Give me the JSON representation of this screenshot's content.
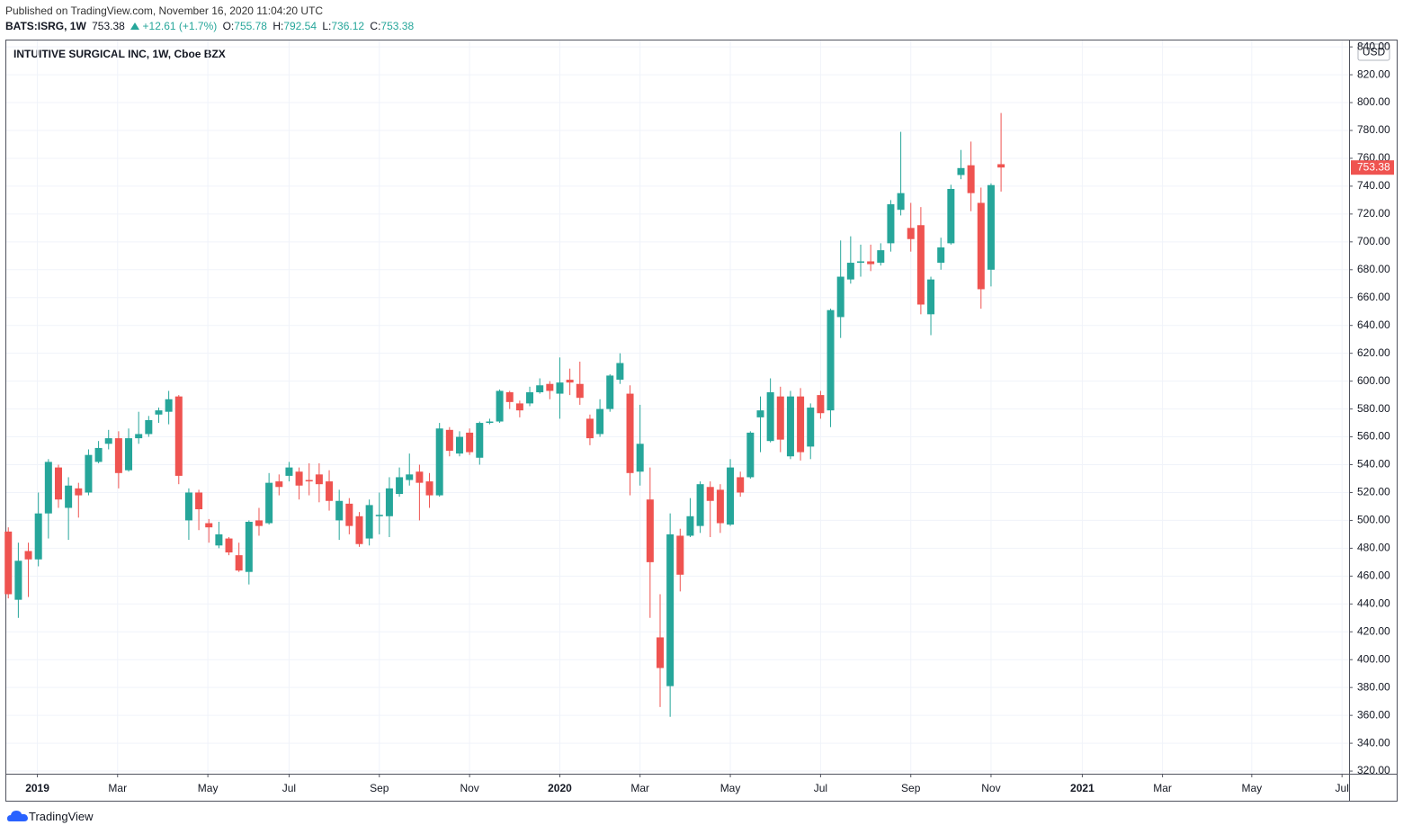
{
  "header": {
    "published": "Published on TradingView.com, November 16, 2020 11:04:20 UTC",
    "symbol": "BATS:ISRG, 1W",
    "change": "+12.61 (+1.7%)",
    "o_label": "O:",
    "h_label": "H:",
    "l_label": "L:",
    "c_label": "C:"
  },
  "chart_data": {
    "type": "candlestick",
    "title": "INTUITIVE SURGICAL INC, 1W, Cboe BZX",
    "currency": "USD",
    "up_color": "#26a69a",
    "down_color": "#ef5350",
    "grid": true,
    "open": [
      492,
      443,
      478,
      472,
      505,
      538,
      509,
      523,
      520,
      542,
      555,
      559,
      536,
      559,
      562,
      576,
      578,
      589,
      500,
      520,
      498,
      482,
      487,
      475,
      463,
      500,
      498,
      528,
      532,
      535,
      529,
      533,
      528,
      500,
      512,
      503,
      487,
      503,
      503,
      519,
      529,
      535,
      528,
      518,
      565,
      548,
      563,
      545,
      570,
      571,
      592,
      584,
      584,
      592,
      598,
      591,
      601,
      598,
      573,
      562,
      580,
      601,
      591,
      535,
      515,
      416,
      381,
      489,
      489,
      496,
      524,
      522,
      497,
      531,
      531,
      574,
      557,
      589,
      546,
      589,
      553,
      590,
      579,
      646,
      673,
      685,
      686,
      685,
      699,
      723,
      710,
      712,
      648,
      685,
      699,
      748,
      755,
      728,
      680,
      755.78
    ],
    "high": [
      495,
      484,
      484,
      520,
      544,
      540,
      531,
      527,
      551,
      557,
      565,
      564,
      566,
      578,
      575,
      581,
      593,
      590,
      523,
      522,
      501,
      499,
      488,
      484,
      500,
      509,
      534,
      533,
      542,
      538,
      541,
      541,
      536,
      522,
      516,
      506,
      515,
      520,
      531,
      538,
      548,
      540,
      534,
      570,
      567,
      564,
      566,
      571,
      573,
      594,
      593,
      586,
      596,
      602,
      600,
      617,
      609,
      614,
      576,
      587,
      605,
      620,
      597,
      583,
      538,
      447,
      505,
      494,
      516,
      528,
      528,
      526,
      544,
      535,
      564,
      589,
      602,
      596,
      593,
      595,
      584,
      593,
      652,
      701,
      704,
      698,
      698,
      699,
      730,
      779,
      728,
      725,
      675,
      703,
      741,
      766,
      772,
      739,
      742,
      792.54
    ],
    "low": [
      444,
      430,
      445,
      467,
      487,
      509,
      486,
      502,
      518,
      541,
      551,
      523,
      535,
      555,
      560,
      570,
      569,
      526,
      486,
      493,
      484,
      480,
      475,
      463,
      454,
      489,
      497,
      518,
      528,
      515,
      518,
      513,
      507,
      486,
      490,
      481,
      482,
      490,
      488,
      517,
      525,
      500,
      509,
      517,
      546,
      546,
      547,
      540,
      569,
      570,
      580,
      574,
      582,
      591,
      587,
      573,
      590,
      583,
      554,
      560,
      578,
      598,
      518,
      525,
      430,
      366,
      359,
      449,
      488,
      491,
      488,
      491,
      496,
      517,
      530,
      549,
      556,
      549,
      544,
      543,
      544,
      573,
      567,
      631,
      670,
      675,
      679,
      683,
      693,
      719,
      693,
      648,
      633,
      680,
      698,
      745,
      722,
      652,
      668,
      736.12
    ],
    "close": [
      447,
      471,
      472,
      505,
      542,
      515,
      525,
      518,
      547,
      552,
      559,
      534,
      559,
      562,
      572,
      579,
      587,
      532,
      520,
      508,
      495,
      490,
      477,
      464,
      499,
      496,
      527,
      524,
      538,
      525,
      528,
      526,
      514,
      514,
      496,
      483,
      511,
      504,
      523,
      531,
      533,
      527,
      518,
      566,
      550,
      560,
      549,
      570,
      571,
      593,
      585,
      579,
      592,
      597,
      593,
      599,
      599,
      588,
      559,
      580,
      604,
      613,
      534,
      555,
      470,
      394,
      490,
      461,
      503,
      526,
      514,
      498,
      538,
      520,
      563,
      579,
      592,
      558,
      589,
      549,
      581,
      577,
      651,
      675,
      685,
      686,
      684,
      694,
      727,
      735,
      702,
      655,
      673,
      696,
      738,
      753,
      735,
      666,
      740.77,
      753.38
    ],
    "xlim": [
      -0.2,
      133.7
    ],
    "xticks": [
      {
        "value": 2.9,
        "label": "2019"
      },
      {
        "value": 10.9,
        "label": "Mar"
      },
      {
        "value": 19.9,
        "label": "May"
      },
      {
        "value": 28.0,
        "label": "Jul"
      },
      {
        "value": 37.0,
        "label": "Sep"
      },
      {
        "value": 46.0,
        "label": "Nov"
      },
      {
        "value": 55.0,
        "label": "2020"
      },
      {
        "value": 63.0,
        "label": "Mar"
      },
      {
        "value": 72.0,
        "label": "May"
      },
      {
        "value": 81.0,
        "label": "Jul"
      },
      {
        "value": 90.0,
        "label": "Sep"
      },
      {
        "value": 98.0,
        "label": "Nov"
      },
      {
        "value": 107.1,
        "label": "2021"
      },
      {
        "value": 115.1,
        "label": "Mar"
      },
      {
        "value": 124.0,
        "label": "May"
      },
      {
        "value": 133.0,
        "label": "Jul"
      }
    ],
    "ylim": [
      318.1,
      844.6
    ],
    "yticks": [
      {
        "value": 320,
        "label": "320.00"
      },
      {
        "value": 340,
        "label": "340.00"
      },
      {
        "value": 360,
        "label": "360.00"
      },
      {
        "value": 380,
        "label": "380.00"
      },
      {
        "value": 400,
        "label": "400.00"
      },
      {
        "value": 420,
        "label": "420.00"
      },
      {
        "value": 440,
        "label": "440.00"
      },
      {
        "value": 460,
        "label": "460.00"
      },
      {
        "value": 480,
        "label": "480.00"
      },
      {
        "value": 500,
        "label": "500.00"
      },
      {
        "value": 520,
        "label": "520.00"
      },
      {
        "value": 540,
        "label": "540.00"
      },
      {
        "value": 560,
        "label": "560.00"
      },
      {
        "value": 580,
        "label": "580.00"
      },
      {
        "value": 600,
        "label": "600.00"
      },
      {
        "value": 620,
        "label": "620.00"
      },
      {
        "value": 640,
        "label": "640.00"
      },
      {
        "value": 660,
        "label": "660.00"
      },
      {
        "value": 680,
        "label": "680.00"
      },
      {
        "value": 700,
        "label": "700.00"
      },
      {
        "value": 720,
        "label": "720.00"
      },
      {
        "value": 740,
        "label": "740.00"
      },
      {
        "value": 760,
        "label": "760.00"
      },
      {
        "value": 780,
        "label": "780.00"
      },
      {
        "value": 800,
        "label": "800.00"
      },
      {
        "value": 820,
        "label": "820.00"
      },
      {
        "value": 840,
        "label": "840.00"
      }
    ]
  },
  "footer": {
    "brand": "TradingView"
  }
}
